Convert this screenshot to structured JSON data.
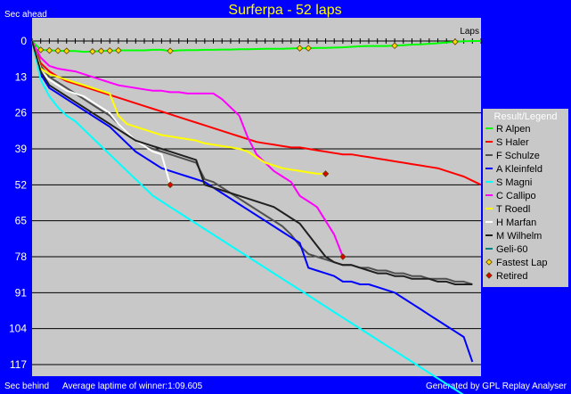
{
  "chart_data": {
    "type": "line",
    "title": "Surferpa - 52 laps",
    "ylabel_top": "Sec ahead",
    "ylabel_bottom": "Sec behind",
    "xlabel": "Laps",
    "footer_left": "Average laptime of winner:1:09.605",
    "footer_right": "Generated by GPL Replay Analyser",
    "x_range": [
      0,
      52
    ],
    "y_range": [
      0,
      122
    ],
    "y_inverted": true,
    "y_ticks": [
      0,
      13,
      26,
      39,
      52,
      65,
      78,
      91,
      104,
      117
    ],
    "grid": true,
    "legend_title": "Result/Legend",
    "legend_position": "right",
    "fastest_lap_label": "Fastest Lap",
    "retired_label": "Retired",
    "fastest_lap_color": "#ffd700",
    "retired_color": "#e00000",
    "plot_bg": "#c8c8c8",
    "series": [
      {
        "name": "R Alpen",
        "color": "#00ff00",
        "x": [
          0,
          1,
          2,
          3,
          4,
          5,
          6,
          7,
          8,
          9,
          10,
          11,
          12,
          13,
          14,
          15,
          16,
          17,
          18,
          19,
          20,
          21,
          22,
          23,
          24,
          25,
          26,
          27,
          28,
          29,
          30,
          31,
          32,
          33,
          34,
          35,
          36,
          37,
          38,
          39,
          40,
          41,
          42,
          43,
          44,
          45,
          46,
          47,
          48,
          49,
          50,
          51,
          52
        ],
        "y": [
          0,
          3.2,
          3.4,
          3.5,
          3.6,
          3.6,
          3.9,
          3.8,
          3.6,
          3.5,
          3.4,
          3.4,
          3.4,
          3.4,
          3.2,
          3.2,
          3.6,
          3.4,
          3.3,
          3.3,
          3.2,
          3.2,
          3.1,
          3.1,
          3.0,
          3.0,
          2.9,
          2.8,
          2.8,
          2.8,
          2.7,
          2.6,
          2.6,
          2.5,
          2.5,
          2.4,
          2.3,
          2.1,
          1.9,
          1.8,
          1.8,
          1.8,
          1.7,
          1.5,
          1.3,
          1.2,
          1.0,
          0.8,
          0.5,
          0.3,
          0.1,
          0.0,
          0.0
        ]
      },
      {
        "name": "S Haler",
        "color": "#ff0000",
        "x": [
          0,
          1,
          2,
          3,
          4,
          5,
          6,
          7,
          8,
          9,
          10,
          11,
          12,
          13,
          14,
          15,
          16,
          17,
          18,
          19,
          20,
          21,
          22,
          23,
          24,
          25,
          26,
          27,
          28,
          29,
          30,
          31,
          32,
          33,
          34,
          35,
          36,
          37,
          38,
          39,
          40,
          41,
          42,
          43,
          44,
          45,
          46,
          47,
          48,
          49,
          50,
          51,
          52
        ],
        "y": [
          0,
          8,
          11,
          13,
          14.5,
          15.5,
          16.5,
          17.5,
          18.5,
          19.5,
          20.5,
          21.5,
          22.5,
          23.5,
          24.5,
          25.5,
          26.5,
          27.5,
          28.5,
          29.5,
          30.5,
          31.5,
          32.5,
          33.5,
          34.5,
          35.5,
          36.5,
          37,
          37.5,
          38,
          38.5,
          38.5,
          39,
          39.5,
          40,
          40.5,
          41,
          41,
          41.5,
          42,
          42.5,
          43,
          43.5,
          44,
          44.5,
          45,
          45.5,
          46,
          47,
          48,
          49,
          50.5,
          52
        ]
      },
      {
        "name": "F Schulze",
        "color": "#505050",
        "x": [
          0,
          1,
          2,
          3,
          4,
          5,
          6,
          7,
          8,
          9,
          10,
          11,
          12,
          13,
          14,
          15,
          16,
          17,
          18,
          19,
          20,
          21,
          22,
          23,
          24,
          25,
          26,
          27,
          28,
          29,
          30,
          31,
          32,
          33,
          34,
          35,
          36,
          37,
          38,
          39,
          40,
          41,
          42,
          43,
          44,
          45,
          46,
          47,
          48,
          49,
          50,
          51
        ],
        "y": [
          0,
          9,
          13,
          15,
          17,
          19,
          21,
          23,
          25,
          27,
          30,
          33,
          36,
          38,
          39,
          40,
          41,
          42,
          43,
          44,
          50,
          51,
          53,
          55,
          57,
          59,
          61,
          63,
          65,
          67,
          70,
          74,
          77,
          78,
          79,
          80,
          81,
          81,
          82,
          82,
          83,
          83,
          84,
          84,
          85,
          85,
          86,
          86,
          86,
          87,
          87,
          88
        ]
      },
      {
        "name": "A Kleinfeld",
        "color": "#0000ff",
        "x": [
          0,
          1,
          2,
          3,
          4,
          5,
          6,
          7,
          8,
          9,
          10,
          11,
          12,
          13,
          14,
          15,
          16,
          17,
          18,
          19,
          20,
          21,
          22,
          23,
          24,
          25,
          26,
          27,
          28,
          29,
          30,
          31,
          32,
          33,
          34,
          35,
          36,
          37,
          38,
          39,
          40,
          41,
          42,
          43,
          44,
          45,
          46,
          47,
          48,
          49,
          50,
          51
        ],
        "y": [
          0,
          12,
          17,
          19,
          21,
          23,
          25,
          27,
          29,
          31,
          34,
          37,
          40,
          42,
          44,
          46,
          47,
          48,
          49,
          50,
          51,
          53,
          55,
          57,
          59,
          61,
          63,
          65,
          67,
          69,
          71,
          73,
          82,
          83,
          84,
          85,
          87,
          87,
          88,
          88,
          89,
          90,
          91,
          93,
          95,
          97,
          99,
          101,
          103,
          105,
          107,
          116
        ]
      },
      {
        "name": "S Magni",
        "color": "#00ffff",
        "x": [
          0,
          1,
          2,
          3,
          4,
          5,
          6,
          7,
          8,
          9,
          10,
          11,
          12,
          13,
          14,
          15,
          16,
          17,
          18,
          19,
          20,
          21,
          22,
          23,
          24,
          25,
          26,
          27,
          28,
          29,
          30,
          31,
          32,
          33,
          34,
          35,
          36,
          37,
          38,
          39,
          40,
          41,
          42,
          43,
          44,
          45,
          46,
          47,
          48,
          49,
          50,
          51
        ],
        "y": [
          0,
          14,
          20,
          24,
          27,
          29,
          32,
          35,
          38,
          41,
          44,
          47,
          50,
          53,
          56,
          58,
          60,
          62,
          64,
          66,
          68,
          70,
          72,
          74,
          76,
          78,
          80,
          82,
          84,
          86,
          88,
          90,
          92,
          94,
          96,
          98,
          100,
          102,
          104,
          106,
          108,
          110,
          112,
          114,
          116,
          118,
          120,
          122,
          124,
          126,
          128,
          130
        ]
      },
      {
        "name": "C Callipo",
        "color": "#ff00ff",
        "x": [
          0,
          1,
          2,
          3,
          4,
          5,
          6,
          7,
          8,
          9,
          10,
          11,
          12,
          13,
          14,
          15,
          16,
          17,
          18,
          19,
          20,
          21,
          22,
          23,
          24,
          25,
          26,
          27,
          28,
          29,
          30,
          31,
          32,
          33,
          34,
          35,
          36
        ],
        "y": [
          0,
          6,
          9,
          10,
          10.5,
          11,
          12,
          13,
          14,
          15,
          16,
          16.5,
          17,
          17.5,
          18,
          18,
          18.5,
          18.5,
          19,
          19,
          19,
          19,
          21,
          24,
          27,
          35,
          41,
          44,
          47,
          49,
          51,
          56,
          58,
          60,
          65,
          70,
          78
        ]
      },
      {
        "name": "T Roedl",
        "color": "#ffff00",
        "x": [
          0,
          1,
          2,
          3,
          4,
          5,
          6,
          7,
          8,
          9,
          10,
          11,
          12,
          13,
          14,
          15,
          16,
          17,
          18,
          19,
          20,
          21,
          22,
          23,
          24,
          25,
          26,
          27,
          28,
          29,
          30,
          31,
          32,
          33,
          34
        ],
        "y": [
          0,
          10,
          12,
          13,
          14,
          15,
          16,
          17,
          18,
          19,
          27,
          30,
          31,
          32,
          33,
          34,
          34.5,
          35,
          35.5,
          36,
          37,
          37.5,
          38,
          38.5,
          39,
          40,
          42,
          44,
          45,
          46,
          46.5,
          47,
          47.5,
          48,
          48
        ]
      },
      {
        "name": "H Marfan",
        "color": "#ffffff",
        "x": [
          0,
          1,
          2,
          3,
          4,
          5,
          6,
          7,
          8,
          9,
          10,
          11,
          12,
          13,
          14,
          15,
          16
        ],
        "y": [
          0,
          11,
          14,
          16,
          18,
          19,
          20,
          22,
          24,
          26,
          30,
          33,
          36,
          38,
          40,
          41,
          52
        ]
      },
      {
        "name": "M Wilhelm",
        "color": "#202020",
        "x": [
          0,
          1,
          2,
          3,
          4,
          5,
          6,
          7,
          8,
          9,
          10,
          11,
          12,
          13,
          14,
          15,
          16,
          17,
          18,
          19,
          20,
          21,
          22,
          23,
          24,
          25,
          26,
          27,
          28,
          29,
          30,
          31,
          32,
          33,
          34,
          35,
          36,
          37,
          38,
          39,
          40,
          41,
          42,
          43,
          44,
          45,
          46,
          47,
          48,
          49,
          50,
          51
        ],
        "y": [
          0,
          11,
          16,
          18,
          20,
          22,
          24,
          26,
          28,
          30,
          32,
          34,
          36,
          37,
          38,
          39,
          40,
          41,
          42,
          43,
          52,
          53,
          54,
          55,
          56,
          57,
          58,
          59,
          60,
          62,
          64,
          66,
          70,
          74,
          78,
          80,
          81,
          81,
          82,
          83,
          84,
          84,
          85,
          85,
          86,
          86,
          86,
          87,
          87,
          88,
          88,
          88
        ]
      },
      {
        "name": "Geli-60",
        "color": "#008080",
        "x": [],
        "y": []
      }
    ],
    "fastest_laps": [
      {
        "x": 1,
        "y": 3.2
      },
      {
        "x": 2,
        "y": 3.4
      },
      {
        "x": 3,
        "y": 3.5
      },
      {
        "x": 4,
        "y": 3.6
      },
      {
        "x": 7,
        "y": 3.8
      },
      {
        "x": 8,
        "y": 3.6
      },
      {
        "x": 9,
        "y": 3.5
      },
      {
        "x": 10,
        "y": 3.4
      },
      {
        "x": 16,
        "y": 3.6
      },
      {
        "x": 31,
        "y": 2.6
      },
      {
        "x": 32,
        "y": 2.6
      },
      {
        "x": 42,
        "y": 1.7
      },
      {
        "x": 49,
        "y": 0.3
      }
    ],
    "retired": [
      {
        "x": 16,
        "y": 52
      },
      {
        "x": 34,
        "y": 48
      },
      {
        "x": 36,
        "y": 78
      }
    ]
  }
}
